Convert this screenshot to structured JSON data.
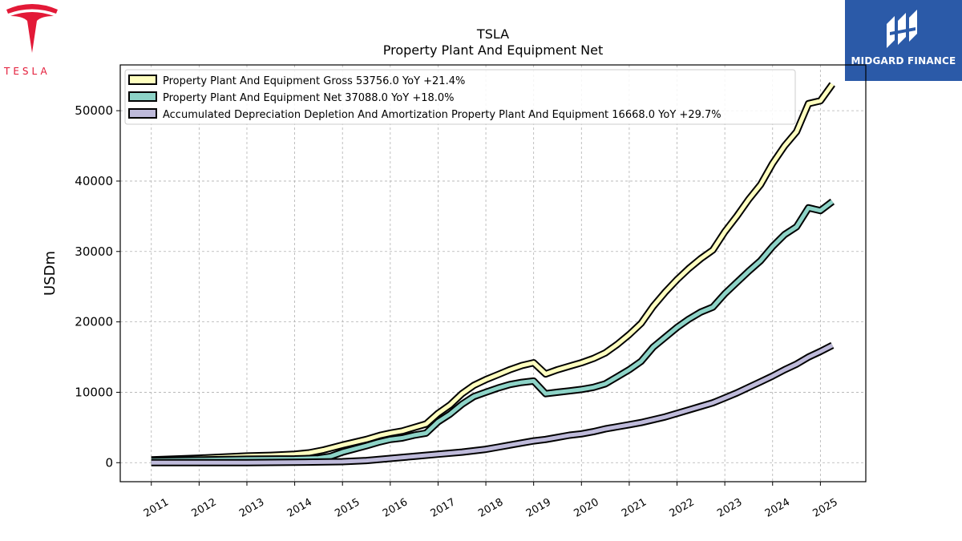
{
  "logos": {
    "left_wordmark": "TESLA",
    "right_brand": "MIDGARD FINANCE",
    "left_color": "#e31937",
    "right_bg": "#2b5aa8"
  },
  "chart_data": {
    "type": "line",
    "title": "TSLA",
    "subtitle": "Property Plant And Equipment Net",
    "xlabel": "",
    "ylabel": "USDm",
    "xlim": [
      2010.35,
      2025.95
    ],
    "ylim": [
      -2700,
      56500
    ],
    "x_ticks": [
      "2011",
      "2012",
      "2013",
      "2014",
      "2015",
      "2016",
      "2017",
      "2018",
      "2019",
      "2020",
      "2021",
      "2022",
      "2023",
      "2024",
      "2025"
    ],
    "y_ticks": [
      0,
      10000,
      20000,
      30000,
      40000,
      50000
    ],
    "grid": true,
    "legend_position": "top-left",
    "series": [
      {
        "name": "Property Plant And Equipment Gross  53756.0 YoY +21.4%",
        "color": "#ffffbf",
        "points": [
          [
            2011.0,
            400
          ],
          [
            2012.0,
            650
          ],
          [
            2013.0,
            950
          ],
          [
            2013.5,
            1050
          ],
          [
            2014.0,
            1200
          ],
          [
            2014.3,
            1400
          ],
          [
            2014.6,
            1800
          ],
          [
            2015.0,
            2500
          ],
          [
            2015.5,
            3300
          ],
          [
            2015.8,
            3900
          ],
          [
            2016.0,
            4200
          ],
          [
            2016.25,
            4500
          ],
          [
            2016.5,
            5000
          ],
          [
            2016.75,
            5500
          ],
          [
            2017.0,
            7000
          ],
          [
            2017.25,
            8200
          ],
          [
            2017.5,
            9800
          ],
          [
            2017.75,
            11000
          ],
          [
            2018.0,
            11800
          ],
          [
            2018.25,
            12500
          ],
          [
            2018.5,
            13200
          ],
          [
            2018.75,
            13800
          ],
          [
            2019.0,
            14200
          ],
          [
            2019.25,
            12600
          ],
          [
            2019.5,
            13200
          ],
          [
            2019.75,
            13700
          ],
          [
            2020.0,
            14200
          ],
          [
            2020.25,
            14800
          ],
          [
            2020.5,
            15600
          ],
          [
            2020.75,
            16800
          ],
          [
            2021.0,
            18200
          ],
          [
            2021.25,
            19800
          ],
          [
            2021.5,
            22200
          ],
          [
            2021.75,
            24200
          ],
          [
            2022.0,
            26000
          ],
          [
            2022.25,
            27600
          ],
          [
            2022.5,
            29000
          ],
          [
            2022.75,
            30200
          ],
          [
            2023.0,
            32800
          ],
          [
            2023.25,
            35000
          ],
          [
            2023.5,
            37400
          ],
          [
            2023.75,
            39500
          ],
          [
            2024.0,
            42500
          ],
          [
            2024.25,
            45000
          ],
          [
            2024.5,
            47000
          ],
          [
            2024.75,
            51000
          ],
          [
            2025.0,
            51400
          ],
          [
            2025.25,
            53756
          ]
        ]
      },
      {
        "name": "Property Plant And Equipment Net  37088.0 YoY +18.0%",
        "color": "#8dd3c7",
        "points": [
          [
            2011.0,
            300
          ],
          [
            2012.0,
            400
          ],
          [
            2013.0,
            500
          ],
          [
            2014.0,
            550
          ],
          [
            2014.5,
            650
          ],
          [
            2014.75,
            900
          ],
          [
            2015.0,
            1500
          ],
          [
            2015.5,
            2400
          ],
          [
            2015.75,
            2900
          ],
          [
            2016.0,
            3300
          ],
          [
            2016.25,
            3500
          ],
          [
            2016.5,
            3900
          ],
          [
            2016.75,
            4200
          ],
          [
            2017.0,
            5800
          ],
          [
            2017.25,
            6900
          ],
          [
            2017.5,
            8300
          ],
          [
            2017.75,
            9400
          ],
          [
            2018.0,
            10000
          ],
          [
            2018.25,
            10600
          ],
          [
            2018.5,
            11100
          ],
          [
            2018.75,
            11400
          ],
          [
            2019.0,
            11600
          ],
          [
            2019.25,
            9800
          ],
          [
            2019.5,
            10000
          ],
          [
            2019.75,
            10200
          ],
          [
            2020.0,
            10400
          ],
          [
            2020.25,
            10700
          ],
          [
            2020.5,
            11200
          ],
          [
            2020.75,
            12200
          ],
          [
            2021.0,
            13200
          ],
          [
            2021.25,
            14400
          ],
          [
            2021.5,
            16400
          ],
          [
            2021.75,
            17800
          ],
          [
            2022.0,
            19200
          ],
          [
            2022.25,
            20400
          ],
          [
            2022.5,
            21400
          ],
          [
            2022.75,
            22100
          ],
          [
            2023.0,
            24000
          ],
          [
            2023.25,
            25600
          ],
          [
            2023.5,
            27200
          ],
          [
            2023.75,
            28700
          ],
          [
            2024.0,
            30700
          ],
          [
            2024.25,
            32400
          ],
          [
            2024.5,
            33500
          ],
          [
            2024.75,
            36200
          ],
          [
            2025.0,
            35800
          ],
          [
            2025.25,
            37088
          ]
        ]
      },
      {
        "name": "Accumulated Depreciation Depletion And Amortization Property Plant And Equipment  16668.0 YoY +29.7%",
        "color": "#bebada",
        "points": [
          [
            2011.0,
            0
          ],
          [
            2012.0,
            0
          ],
          [
            2013.0,
            0
          ],
          [
            2014.0,
            50
          ],
          [
            2015.0,
            150
          ],
          [
            2015.5,
            300
          ],
          [
            2016.0,
            600
          ],
          [
            2016.5,
            900
          ],
          [
            2017.0,
            1200
          ],
          [
            2017.5,
            1500
          ],
          [
            2018.0,
            1900
          ],
          [
            2018.25,
            2200
          ],
          [
            2018.5,
            2500
          ],
          [
            2018.75,
            2800
          ],
          [
            2019.0,
            3100
          ],
          [
            2019.25,
            3300
          ],
          [
            2019.5,
            3600
          ],
          [
            2019.75,
            3900
          ],
          [
            2020.0,
            4100
          ],
          [
            2020.25,
            4400
          ],
          [
            2020.5,
            4800
          ],
          [
            2020.75,
            5100
          ],
          [
            2021.0,
            5400
          ],
          [
            2021.25,
            5700
          ],
          [
            2021.5,
            6100
          ],
          [
            2021.75,
            6500
          ],
          [
            2022.0,
            7000
          ],
          [
            2022.25,
            7500
          ],
          [
            2022.5,
            8000
          ],
          [
            2022.75,
            8500
          ],
          [
            2023.0,
            9200
          ],
          [
            2023.25,
            9900
          ],
          [
            2023.5,
            10700
          ],
          [
            2023.75,
            11500
          ],
          [
            2024.0,
            12300
          ],
          [
            2024.25,
            13200
          ],
          [
            2024.5,
            14000
          ],
          [
            2024.75,
            15000
          ],
          [
            2025.0,
            15800
          ],
          [
            2025.25,
            16668
          ]
        ]
      }
    ]
  }
}
